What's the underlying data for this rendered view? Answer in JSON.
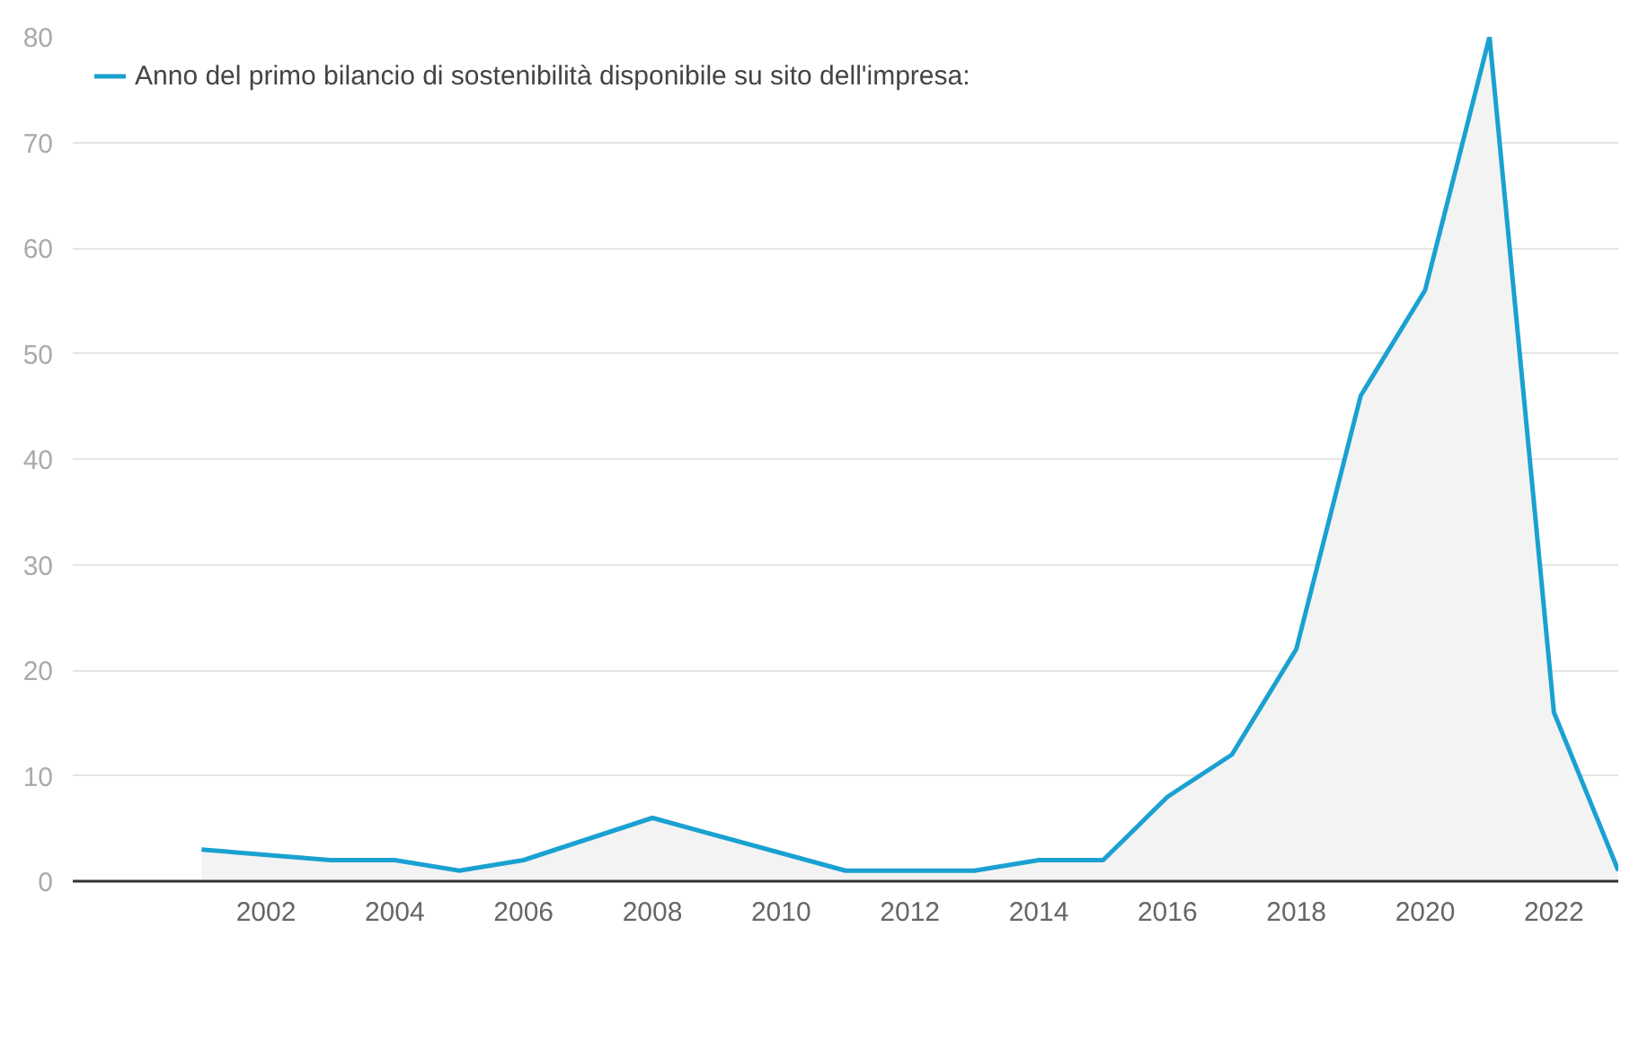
{
  "chart_data": {
    "type": "area",
    "x": [
      2001,
      2003,
      2004,
      2005,
      2006,
      2008,
      2011,
      2012,
      2013,
      2014,
      2015,
      2016,
      2017,
      2018,
      2019,
      2020,
      2021,
      2022,
      2023
    ],
    "series": [
      {
        "name": "Anno del primo bilancio di sostenibilità disponibile su sito dell'impresa:",
        "color": "#1aa1d2",
        "values": [
          3,
          2,
          2,
          1,
          2,
          6,
          1,
          1,
          1,
          2,
          2,
          8,
          12,
          22,
          46,
          56,
          80,
          16,
          1
        ]
      }
    ],
    "xlim": [
      1999,
      2023
    ],
    "xticks": [
      2002,
      2004,
      2006,
      2008,
      2010,
      2012,
      2014,
      2016,
      2018,
      2020,
      2022
    ],
    "ylim": [
      0,
      80
    ],
    "yticks": [
      0,
      10,
      20,
      30,
      40,
      50,
      60,
      70,
      80
    ],
    "grid": "y",
    "legend": "top left",
    "line_style": "solid"
  }
}
